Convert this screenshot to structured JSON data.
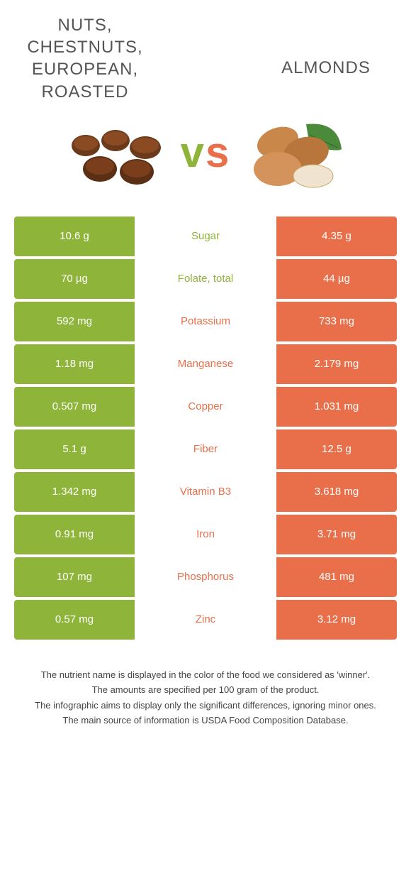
{
  "colors": {
    "left": "#8fb43a",
    "right": "#e86f4a",
    "background": "#ffffff",
    "text": "#555555"
  },
  "header": {
    "left_title": "Nuts, chestnuts, european, roasted",
    "right_title": "Almonds",
    "vs_v": "v",
    "vs_s": "s"
  },
  "rows": [
    {
      "left": "10.6 g",
      "label": "Sugar",
      "right": "4.35 g",
      "winner": "left"
    },
    {
      "left": "70 µg",
      "label": "Folate, total",
      "right": "44 µg",
      "winner": "left"
    },
    {
      "left": "592 mg",
      "label": "Potassium",
      "right": "733 mg",
      "winner": "right"
    },
    {
      "left": "1.18 mg",
      "label": "Manganese",
      "right": "2.179 mg",
      "winner": "right"
    },
    {
      "left": "0.507 mg",
      "label": "Copper",
      "right": "1.031 mg",
      "winner": "right"
    },
    {
      "left": "5.1 g",
      "label": "Fiber",
      "right": "12.5 g",
      "winner": "right"
    },
    {
      "left": "1.342 mg",
      "label": "Vitamin B3",
      "right": "3.618 mg",
      "winner": "right"
    },
    {
      "left": "0.91 mg",
      "label": "Iron",
      "right": "3.71 mg",
      "winner": "right"
    },
    {
      "left": "107 mg",
      "label": "Phosphorus",
      "right": "481 mg",
      "winner": "right"
    },
    {
      "left": "0.57 mg",
      "label": "Zinc",
      "right": "3.12 mg",
      "winner": "right"
    }
  ],
  "footer": {
    "l1": "The nutrient name is displayed in the color of the food we considered as 'winner'.",
    "l2": "The amounts are specified per 100 gram of the product.",
    "l3": "The infographic aims to display only the significant differences, ignoring minor ones.",
    "l4": "The main source of information is USDA Food Composition Database."
  }
}
